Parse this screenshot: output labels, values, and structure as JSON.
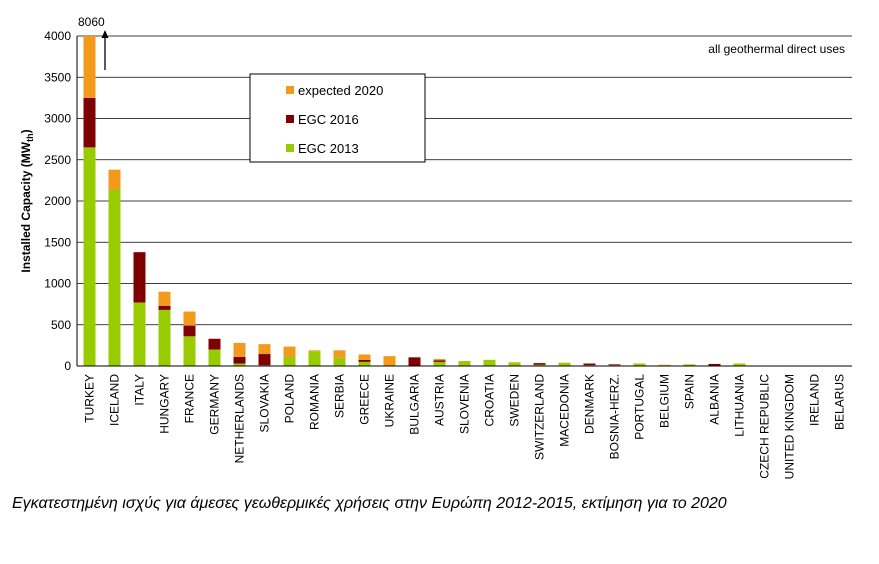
{
  "caption": "Εγκατεστημένη ισχύς για άμεσες γεωθερμικές χρήσεις στην Ευρώπη 2012-2015, εκτίμηση για το 2020",
  "chart_data": {
    "type": "bar",
    "stacked": true,
    "annotation": "all geothermal direct uses",
    "overflow_label": "8060",
    "ylabel": "Installed Capacity (MW",
    "ylabel_sub": "th",
    "ylabel_close": ")",
    "ylim": [
      0,
      4000
    ],
    "yticks": [
      0,
      500,
      1000,
      1500,
      2000,
      2500,
      3000,
      3500,
      4000
    ],
    "grid": true,
    "legend_position": "top-center",
    "categories": [
      "TURKEY",
      "ICELAND",
      "ITALY",
      "HUNGARY",
      "FRANCE",
      "GERMANY",
      "NETHERLANDS",
      "SLOVAKIA",
      "POLAND",
      "ROMANIA",
      "SERBIA",
      "GREECE",
      "UKRAINE",
      "BULGARIA",
      "AUSTRIA",
      "SLOVENIA",
      "CROATIA",
      "SWEDEN",
      "SWITZERLAND",
      "MACEDONIA",
      "DENMARK",
      "BOSNIA-HERZ.",
      "PORTUGAL",
      "BELGIUM",
      "SPAIN",
      "ALBANIA",
      "LITHUANIA",
      "CZECH REPUBLIC",
      "UNITED KINGDOM",
      "IRELAND",
      "BELARUS"
    ],
    "series": [
      {
        "name": "EGC 2013",
        "color": "#99cc00",
        "values": [
          2650,
          2140,
          770,
          680,
          360,
          200,
          30,
          10,
          110,
          180,
          100,
          50,
          5,
          5,
          50,
          60,
          75,
          45,
          15,
          40,
          10,
          10,
          30,
          10,
          20,
          5,
          30,
          5,
          5,
          5,
          5
        ]
      },
      {
        "name": "EGC 2016",
        "color": "#7f0000",
        "values": [
          600,
          0,
          610,
          50,
          130,
          130,
          80,
          135,
          0,
          0,
          0,
          25,
          0,
          100,
          20,
          0,
          0,
          0,
          20,
          0,
          20,
          10,
          0,
          0,
          0,
          20,
          0,
          0,
          0,
          0,
          0
        ]
      },
      {
        "name": "expected 2020",
        "color": "#f39a1d",
        "values": [
          770,
          240,
          0,
          170,
          170,
          0,
          170,
          120,
          125,
          10,
          90,
          65,
          115,
          0,
          15,
          0,
          0,
          0,
          0,
          0,
          0,
          0,
          0,
          5,
          0,
          0,
          0,
          0,
          0,
          0,
          0
        ]
      }
    ]
  }
}
